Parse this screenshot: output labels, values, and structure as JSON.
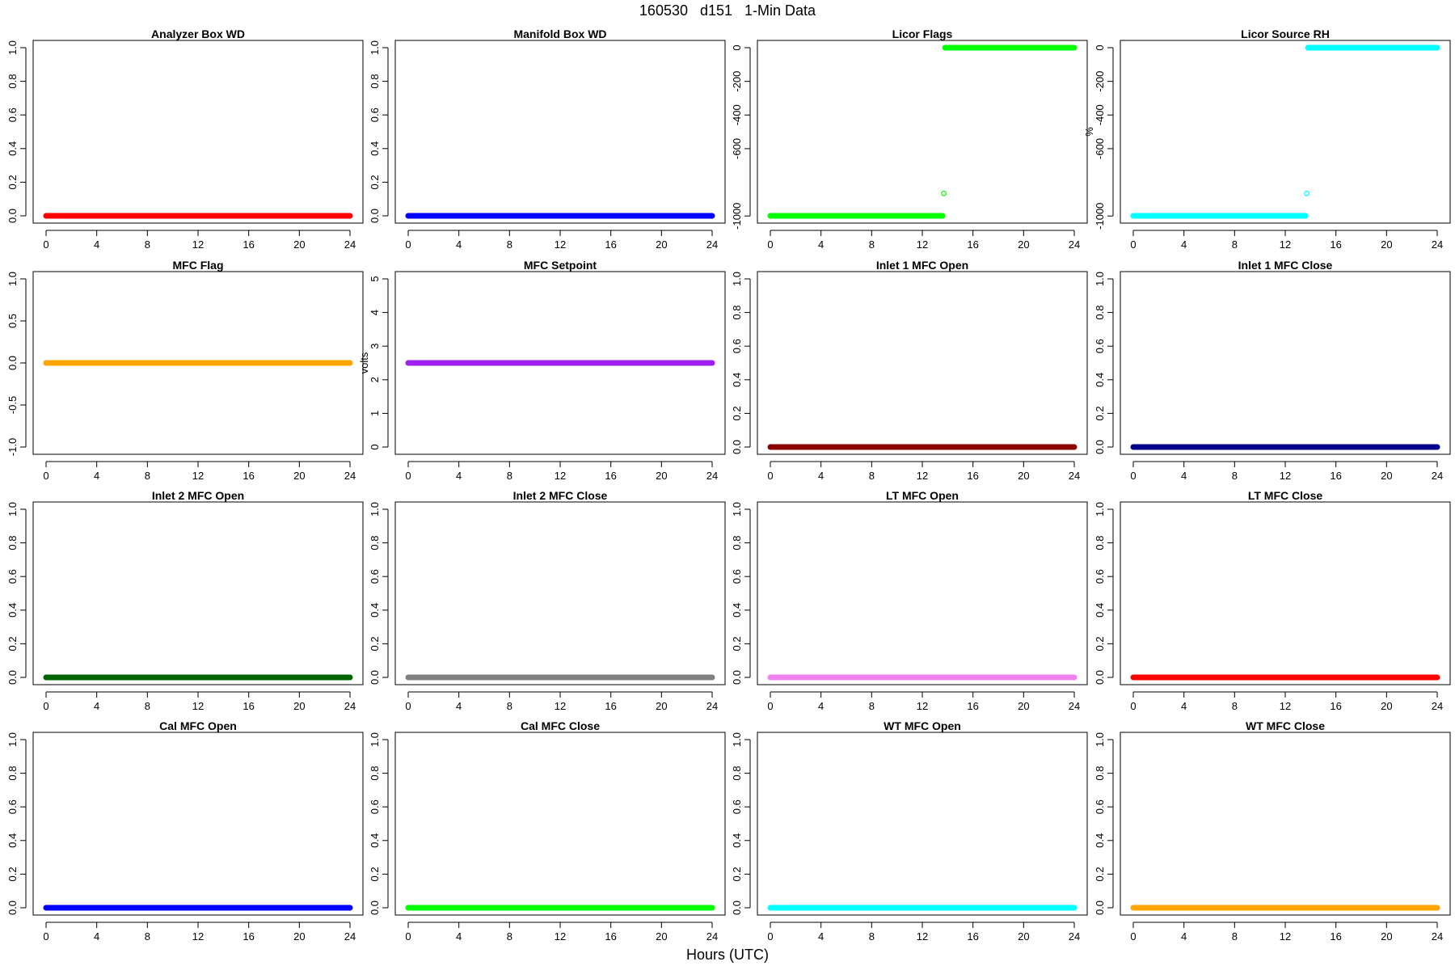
{
  "title": "160530   d151   1-Min Data",
  "xlabel": "Hours (UTC)",
  "chart_data": [
    {
      "type": "scatter",
      "title": "Analyzer Box WD",
      "xlabel": "",
      "ylabel": "",
      "xlim": [
        0,
        24
      ],
      "ylim": [
        0,
        1
      ],
      "x_ticks": [
        0,
        4,
        8,
        12,
        16,
        20,
        24
      ],
      "y_ticks": [
        "0.0",
        "0.2",
        "0.4",
        "0.6",
        "0.8",
        "1.0"
      ],
      "grid": false,
      "series": [
        {
          "color": "#ff0000",
          "segments": [
            {
              "x": [
                0,
                24
              ],
              "y": 0
            }
          ]
        }
      ]
    },
    {
      "type": "scatter",
      "title": "Manifold Box WD",
      "xlabel": "",
      "ylabel": "",
      "xlim": [
        0,
        24
      ],
      "ylim": [
        0,
        1
      ],
      "x_ticks": [
        0,
        4,
        8,
        12,
        16,
        20,
        24
      ],
      "y_ticks": [
        "0.0",
        "0.2",
        "0.4",
        "0.6",
        "0.8",
        "1.0"
      ],
      "grid": false,
      "series": [
        {
          "color": "#0000ff",
          "segments": [
            {
              "x": [
                0,
                24
              ],
              "y": 0
            }
          ]
        }
      ]
    },
    {
      "type": "scatter",
      "title": "Licor Flags",
      "xlabel": "",
      "ylabel": "",
      "xlim": [
        0,
        24
      ],
      "ylim": [
        -999,
        0
      ],
      "x_ticks": [
        0,
        4,
        8,
        12,
        16,
        20,
        24
      ],
      "y_ticks": [
        "-1000",
        "-600",
        "-400",
        "-200",
        "0"
      ],
      "y_tick_values": [
        -1000,
        -600,
        -400,
        -200,
        0
      ],
      "grid": false,
      "series": [
        {
          "color": "#00ff00",
          "segments": [
            {
              "x": [
                0,
                13.6
              ],
              "y": -999
            },
            {
              "x": [
                13.8,
                24
              ],
              "y": 0
            }
          ],
          "points": [
            {
              "x": 13.7,
              "y": -866
            }
          ]
        }
      ]
    },
    {
      "type": "scatter",
      "title": "Licor Source RH",
      "xlabel": "",
      "ylabel": "%",
      "xlim": [
        0,
        24
      ],
      "ylim": [
        -999,
        0
      ],
      "x_ticks": [
        0,
        4,
        8,
        12,
        16,
        20,
        24
      ],
      "y_ticks": [
        "-1000",
        "-600",
        "-400",
        "-200",
        "0"
      ],
      "y_tick_values": [
        -1000,
        -600,
        -400,
        -200,
        0
      ],
      "grid": false,
      "series": [
        {
          "color": "#00ffff",
          "segments": [
            {
              "x": [
                0,
                13.6
              ],
              "y": -999
            },
            {
              "x": [
                13.8,
                24
              ],
              "y": 0
            }
          ],
          "points": [
            {
              "x": 13.7,
              "y": -866
            }
          ]
        }
      ]
    },
    {
      "type": "scatter",
      "title": "MFC Flag",
      "xlabel": "",
      "ylabel": "",
      "xlim": [
        0,
        24
      ],
      "ylim": [
        -1,
        1
      ],
      "x_ticks": [
        0,
        4,
        8,
        12,
        16,
        20,
        24
      ],
      "y_ticks": [
        "-1.0",
        "-0.5",
        "0.0",
        "0.5",
        "1.0"
      ],
      "y_tick_values": [
        -1,
        -0.5,
        0,
        0.5,
        1
      ],
      "grid": false,
      "series": [
        {
          "color": "#ffa500",
          "segments": [
            {
              "x": [
                0,
                24
              ],
              "y": 0
            }
          ]
        }
      ]
    },
    {
      "type": "scatter",
      "title": "MFC Setpoint",
      "xlabel": "",
      "ylabel": "volts",
      "xlim": [
        0,
        24
      ],
      "ylim": [
        0,
        5
      ],
      "x_ticks": [
        0,
        4,
        8,
        12,
        16,
        20,
        24
      ],
      "y_ticks": [
        "0",
        "1",
        "2",
        "3",
        "4",
        "5"
      ],
      "y_tick_values": [
        0,
        1,
        2,
        3,
        4,
        5
      ],
      "grid": false,
      "series": [
        {
          "color": "#a020f0",
          "segments": [
            {
              "x": [
                0,
                24
              ],
              "y": 2.5
            }
          ]
        }
      ]
    },
    {
      "type": "scatter",
      "title": "Inlet 1 MFC Open",
      "xlabel": "",
      "ylabel": "",
      "xlim": [
        0,
        24
      ],
      "ylim": [
        0,
        1
      ],
      "x_ticks": [
        0,
        4,
        8,
        12,
        16,
        20,
        24
      ],
      "y_ticks": [
        "0.0",
        "0.2",
        "0.4",
        "0.6",
        "0.8",
        "1.0"
      ],
      "grid": false,
      "series": [
        {
          "color": "#8b0000",
          "segments": [
            {
              "x": [
                0,
                24
              ],
              "y": 0
            }
          ]
        }
      ]
    },
    {
      "type": "scatter",
      "title": "Inlet 1 MFC Close",
      "xlabel": "",
      "ylabel": "",
      "xlim": [
        0,
        24
      ],
      "ylim": [
        0,
        1
      ],
      "x_ticks": [
        0,
        4,
        8,
        12,
        16,
        20,
        24
      ],
      "y_ticks": [
        "0.0",
        "0.2",
        "0.4",
        "0.6",
        "0.8",
        "1.0"
      ],
      "grid": false,
      "series": [
        {
          "color": "#00008b",
          "segments": [
            {
              "x": [
                0,
                24
              ],
              "y": 0
            }
          ]
        }
      ]
    },
    {
      "type": "scatter",
      "title": "Inlet 2 MFC Open",
      "xlabel": "",
      "ylabel": "",
      "xlim": [
        0,
        24
      ],
      "ylim": [
        0,
        1
      ],
      "x_ticks": [
        0,
        4,
        8,
        12,
        16,
        20,
        24
      ],
      "y_ticks": [
        "0.0",
        "0.2",
        "0.4",
        "0.6",
        "0.8",
        "1.0"
      ],
      "grid": false,
      "series": [
        {
          "color": "#006400",
          "segments": [
            {
              "x": [
                0,
                24
              ],
              "y": 0
            }
          ]
        }
      ]
    },
    {
      "type": "scatter",
      "title": "Inlet 2 MFC Close",
      "xlabel": "",
      "ylabel": "",
      "xlim": [
        0,
        24
      ],
      "ylim": [
        0,
        1
      ],
      "x_ticks": [
        0,
        4,
        8,
        12,
        16,
        20,
        24
      ],
      "y_ticks": [
        "0.0",
        "0.2",
        "0.4",
        "0.6",
        "0.8",
        "1.0"
      ],
      "grid": false,
      "series": [
        {
          "color": "#808080",
          "segments": [
            {
              "x": [
                0,
                24
              ],
              "y": 0
            }
          ]
        }
      ]
    },
    {
      "type": "scatter",
      "title": "LT MFC Open",
      "xlabel": "",
      "ylabel": "",
      "xlim": [
        0,
        24
      ],
      "ylim": [
        0,
        1
      ],
      "x_ticks": [
        0,
        4,
        8,
        12,
        16,
        20,
        24
      ],
      "y_ticks": [
        "0.0",
        "0.2",
        "0.4",
        "0.6",
        "0.8",
        "1.0"
      ],
      "grid": false,
      "series": [
        {
          "color": "#ee82ee",
          "segments": [
            {
              "x": [
                0,
                24
              ],
              "y": 0
            }
          ]
        }
      ]
    },
    {
      "type": "scatter",
      "title": "LT MFC Close",
      "xlabel": "",
      "ylabel": "",
      "xlim": [
        0,
        24
      ],
      "ylim": [
        0,
        1
      ],
      "x_ticks": [
        0,
        4,
        8,
        12,
        16,
        20,
        24
      ],
      "y_ticks": [
        "0.0",
        "0.2",
        "0.4",
        "0.6",
        "0.8",
        "1.0"
      ],
      "grid": false,
      "series": [
        {
          "color": "#ff0000",
          "segments": [
            {
              "x": [
                0,
                24
              ],
              "y": 0
            }
          ]
        }
      ]
    },
    {
      "type": "scatter",
      "title": "Cal MFC Open",
      "xlabel": "",
      "ylabel": "",
      "xlim": [
        0,
        24
      ],
      "ylim": [
        0,
        1
      ],
      "x_ticks": [
        0,
        4,
        8,
        12,
        16,
        20,
        24
      ],
      "y_ticks": [
        "0.0",
        "0.2",
        "0.4",
        "0.6",
        "0.8",
        "1.0"
      ],
      "grid": false,
      "series": [
        {
          "color": "#0000ff",
          "segments": [
            {
              "x": [
                0,
                24
              ],
              "y": 0
            }
          ]
        }
      ]
    },
    {
      "type": "scatter",
      "title": "Cal MFC Close",
      "xlabel": "",
      "ylabel": "",
      "xlim": [
        0,
        24
      ],
      "ylim": [
        0,
        1
      ],
      "x_ticks": [
        0,
        4,
        8,
        12,
        16,
        20,
        24
      ],
      "y_ticks": [
        "0.0",
        "0.2",
        "0.4",
        "0.6",
        "0.8",
        "1.0"
      ],
      "grid": false,
      "series": [
        {
          "color": "#00ff00",
          "segments": [
            {
              "x": [
                0,
                24
              ],
              "y": 0
            }
          ]
        }
      ]
    },
    {
      "type": "scatter",
      "title": "WT MFC Open",
      "xlabel": "",
      "ylabel": "",
      "xlim": [
        0,
        24
      ],
      "ylim": [
        0,
        1
      ],
      "x_ticks": [
        0,
        4,
        8,
        12,
        16,
        20,
        24
      ],
      "y_ticks": [
        "0.0",
        "0.2",
        "0.4",
        "0.6",
        "0.8",
        "1.0"
      ],
      "grid": false,
      "series": [
        {
          "color": "#00ffff",
          "segments": [
            {
              "x": [
                0,
                24
              ],
              "y": 0
            }
          ]
        }
      ]
    },
    {
      "type": "scatter",
      "title": "WT MFC Close",
      "xlabel": "",
      "ylabel": "",
      "xlim": [
        0,
        24
      ],
      "ylim": [
        0,
        1
      ],
      "x_ticks": [
        0,
        4,
        8,
        12,
        16,
        20,
        24
      ],
      "y_ticks": [
        "0.0",
        "0.2",
        "0.4",
        "0.6",
        "0.8",
        "1.0"
      ],
      "grid": false,
      "series": [
        {
          "color": "#ffa500",
          "segments": [
            {
              "x": [
                0,
                24
              ],
              "y": 0
            }
          ]
        }
      ]
    }
  ]
}
